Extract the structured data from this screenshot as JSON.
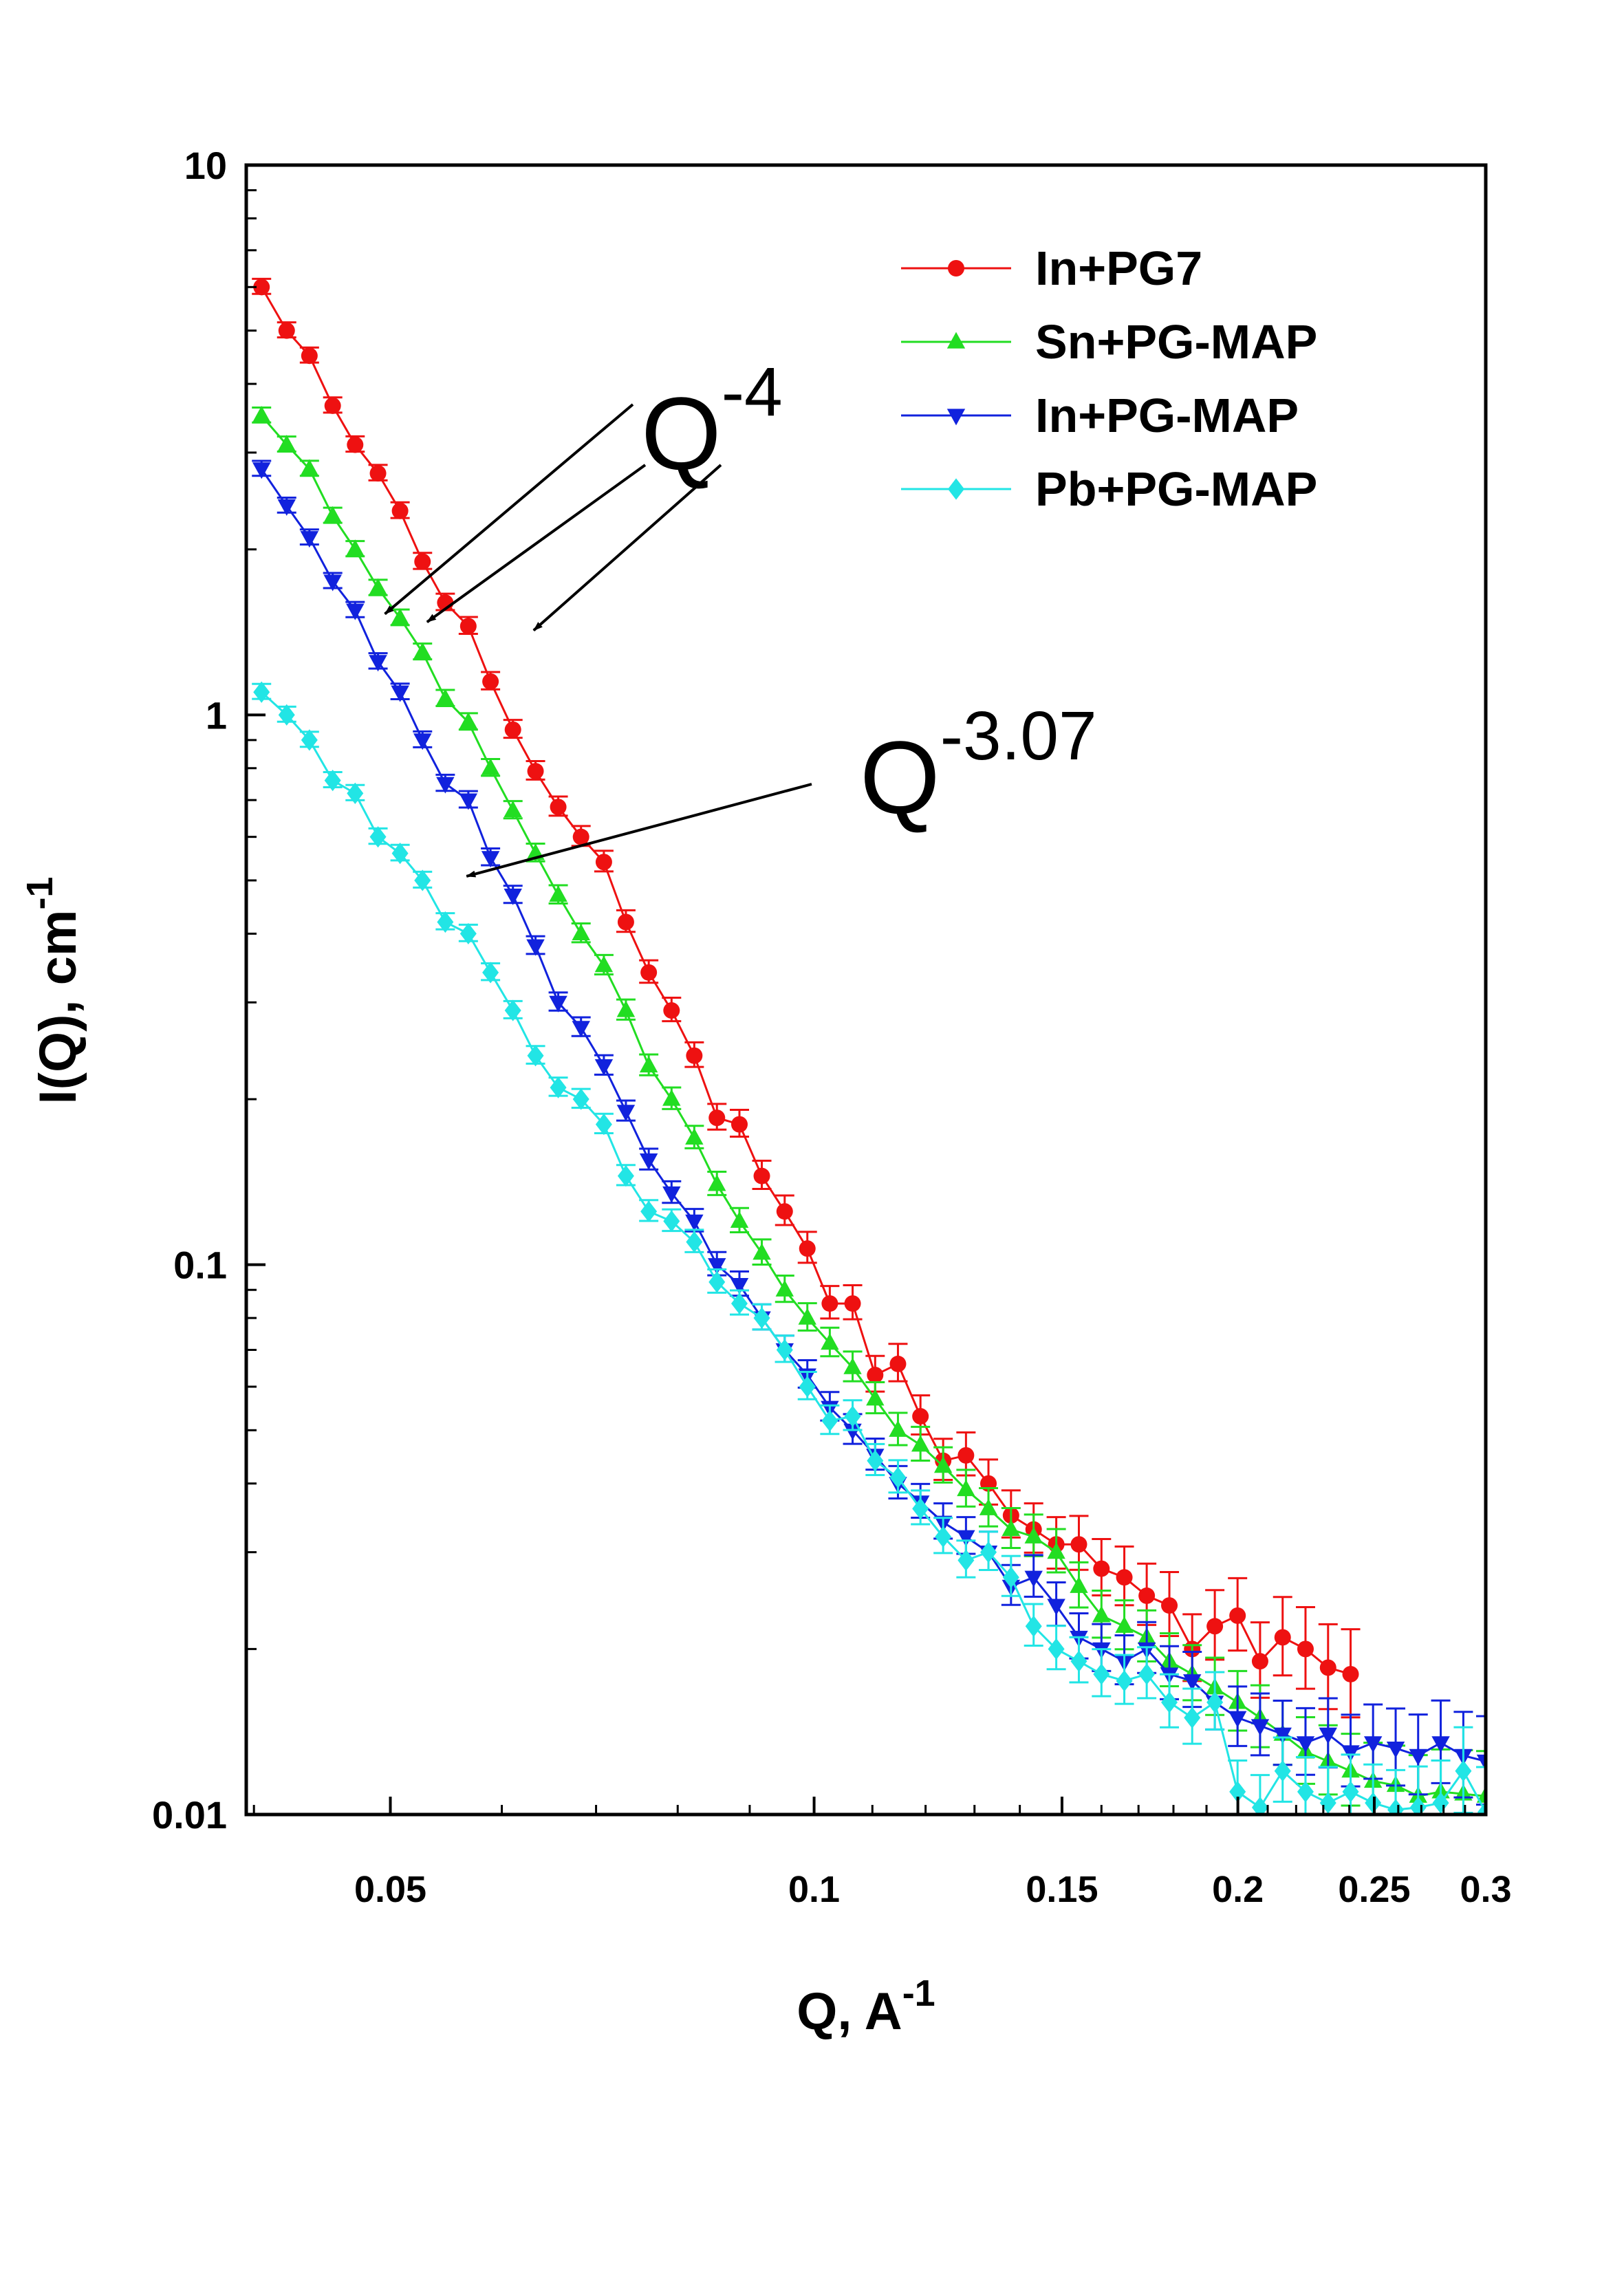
{
  "chart_data": {
    "type": "scatter",
    "title": "",
    "xlabel": "Q, A",
    "xlabel_sup": "-1",
    "ylabel": "I(Q), cm",
    "ylabel_sup": "-1",
    "xscale": "log",
    "yscale": "log",
    "xlim": [
      0.0395,
      0.3
    ],
    "ylim": [
      0.01,
      10
    ],
    "x_ticks": [
      0.05,
      0.1,
      0.15,
      0.2,
      0.25,
      0.3
    ],
    "x_tick_labels": [
      "0.05",
      "0.1",
      "0.15",
      "0.2",
      "0.25",
      "0.3"
    ],
    "y_ticks": [
      0.01,
      0.1,
      1,
      10
    ],
    "y_tick_labels": [
      "0.01",
      "0.1",
      "1",
      "10"
    ],
    "grid": false,
    "legend_position": "top-right",
    "series": [
      {
        "name": "In+PG7",
        "color": "#ee1111",
        "marker": "circle",
        "points": [
          [
            0.0405,
            6.0
          ],
          [
            0.0422,
            5.0
          ],
          [
            0.0438,
            4.5
          ],
          [
            0.0455,
            3.65
          ],
          [
            0.0472,
            3.1
          ],
          [
            0.049,
            2.75
          ],
          [
            0.0508,
            2.35
          ],
          [
            0.0527,
            1.9
          ],
          [
            0.0547,
            1.6
          ],
          [
            0.0568,
            1.45
          ],
          [
            0.0589,
            1.15
          ],
          [
            0.0611,
            0.94
          ],
          [
            0.0634,
            0.79
          ],
          [
            0.0658,
            0.68
          ],
          [
            0.0683,
            0.6
          ],
          [
            0.0709,
            0.54
          ],
          [
            0.0735,
            0.42
          ],
          [
            0.0763,
            0.34
          ],
          [
            0.0792,
            0.29
          ],
          [
            0.0822,
            0.24
          ],
          [
            0.0853,
            0.185
          ],
          [
            0.0885,
            0.18
          ],
          [
            0.0918,
            0.145
          ],
          [
            0.0953,
            0.125
          ],
          [
            0.0989,
            0.107
          ],
          [
            0.1026,
            0.085
          ],
          [
            0.1065,
            0.085
          ],
          [
            0.1105,
            0.063
          ],
          [
            0.1147,
            0.066
          ],
          [
            0.119,
            0.053
          ],
          [
            0.1235,
            0.044
          ],
          [
            0.1282,
            0.045
          ],
          [
            0.133,
            0.04
          ],
          [
            0.138,
            0.035
          ],
          [
            0.1432,
            0.033
          ],
          [
            0.1486,
            0.031
          ],
          [
            0.1542,
            0.031
          ],
          [
            0.16,
            0.028
          ],
          [
            0.1661,
            0.027
          ],
          [
            0.1723,
            0.025
          ],
          [
            0.1788,
            0.024
          ],
          [
            0.1856,
            0.02
          ],
          [
            0.1926,
            0.022
          ],
          [
            0.1999,
            0.023
          ],
          [
            0.2074,
            0.019
          ],
          [
            0.2152,
            0.021
          ],
          [
            0.2234,
            0.02
          ],
          [
            0.2318,
            0.0185
          ],
          [
            0.2405,
            0.018
          ]
        ]
      },
      {
        "name": "Sn+PG-MAP",
        "color": "#22dd22",
        "marker": "triangle-up",
        "points": [
          [
            0.0405,
            3.5
          ],
          [
            0.0422,
            3.1
          ],
          [
            0.0438,
            2.8
          ],
          [
            0.0455,
            2.3
          ],
          [
            0.0472,
            2.0
          ],
          [
            0.049,
            1.7
          ],
          [
            0.0508,
            1.5
          ],
          [
            0.0527,
            1.3
          ],
          [
            0.0547,
            1.07
          ],
          [
            0.0568,
            0.97
          ],
          [
            0.0589,
            0.8
          ],
          [
            0.0611,
            0.67
          ],
          [
            0.0634,
            0.56
          ],
          [
            0.0658,
            0.47
          ],
          [
            0.0683,
            0.4
          ],
          [
            0.0709,
            0.35
          ],
          [
            0.0735,
            0.29
          ],
          [
            0.0763,
            0.23
          ],
          [
            0.0792,
            0.2
          ],
          [
            0.0822,
            0.17
          ],
          [
            0.0853,
            0.14
          ],
          [
            0.0885,
            0.12
          ],
          [
            0.0918,
            0.105
          ],
          [
            0.0953,
            0.09
          ],
          [
            0.0989,
            0.08
          ],
          [
            0.1026,
            0.072
          ],
          [
            0.1065,
            0.065
          ],
          [
            0.1105,
            0.057
          ],
          [
            0.1147,
            0.05
          ],
          [
            0.119,
            0.047
          ],
          [
            0.1235,
            0.043
          ],
          [
            0.1282,
            0.039
          ],
          [
            0.133,
            0.036
          ],
          [
            0.138,
            0.033
          ],
          [
            0.1432,
            0.032
          ],
          [
            0.1486,
            0.03
          ],
          [
            0.1542,
            0.026
          ],
          [
            0.16,
            0.023
          ],
          [
            0.1661,
            0.022
          ],
          [
            0.1723,
            0.021
          ],
          [
            0.1788,
            0.019
          ],
          [
            0.1856,
            0.018
          ],
          [
            0.1926,
            0.017
          ],
          [
            0.1999,
            0.016
          ],
          [
            0.2074,
            0.015
          ],
          [
            0.2152,
            0.014
          ],
          [
            0.2234,
            0.013
          ],
          [
            0.2318,
            0.0125
          ],
          [
            0.2405,
            0.012
          ],
          [
            0.2495,
            0.0115
          ],
          [
            0.2589,
            0.0113
          ],
          [
            0.2686,
            0.0108
          ],
          [
            0.2787,
            0.011
          ],
          [
            0.2892,
            0.0109
          ],
          [
            0.3,
            0.0108
          ]
        ]
      },
      {
        "name": "In+PG-MAP",
        "color": "#1122dd",
        "marker": "triangle-down",
        "points": [
          [
            0.0405,
            2.8
          ],
          [
            0.0422,
            2.4
          ],
          [
            0.0438,
            2.1
          ],
          [
            0.0455,
            1.75
          ],
          [
            0.0472,
            1.55
          ],
          [
            0.049,
            1.25
          ],
          [
            0.0508,
            1.1
          ],
          [
            0.0527,
            0.9
          ],
          [
            0.0547,
            0.75
          ],
          [
            0.0568,
            0.7
          ],
          [
            0.0589,
            0.55
          ],
          [
            0.0611,
            0.47
          ],
          [
            0.0634,
            0.38
          ],
          [
            0.0658,
            0.3
          ],
          [
            0.0683,
            0.27
          ],
          [
            0.0709,
            0.23
          ],
          [
            0.0735,
            0.19
          ],
          [
            0.0763,
            0.155
          ],
          [
            0.0792,
            0.135
          ],
          [
            0.0822,
            0.12
          ],
          [
            0.0853,
            0.1
          ],
          [
            0.0885,
            0.092
          ],
          [
            0.0918,
            0.08
          ],
          [
            0.0953,
            0.07
          ],
          [
            0.0989,
            0.063
          ],
          [
            0.1026,
            0.055
          ],
          [
            0.1065,
            0.05
          ],
          [
            0.1105,
            0.045
          ],
          [
            0.1147,
            0.04
          ],
          [
            0.119,
            0.037
          ],
          [
            0.1235,
            0.034
          ],
          [
            0.1282,
            0.032
          ],
          [
            0.133,
            0.03
          ],
          [
            0.138,
            0.026
          ],
          [
            0.1432,
            0.027
          ],
          [
            0.1486,
            0.024
          ],
          [
            0.1542,
            0.021
          ],
          [
            0.16,
            0.02
          ],
          [
            0.1661,
            0.019
          ],
          [
            0.1723,
            0.02
          ],
          [
            0.1788,
            0.018
          ],
          [
            0.1856,
            0.0175
          ],
          [
            0.1926,
            0.016
          ],
          [
            0.1999,
            0.015
          ],
          [
            0.2074,
            0.0145
          ],
          [
            0.2152,
            0.014
          ],
          [
            0.2234,
            0.0135
          ],
          [
            0.2318,
            0.014
          ],
          [
            0.2405,
            0.013
          ],
          [
            0.2495,
            0.0135
          ],
          [
            0.2589,
            0.0132
          ],
          [
            0.2686,
            0.0128
          ],
          [
            0.2787,
            0.0135
          ],
          [
            0.2892,
            0.0128
          ],
          [
            0.3,
            0.0125
          ]
        ]
      },
      {
        "name": "Pb+PG-MAP",
        "color": "#22e5e5",
        "marker": "diamond",
        "points": [
          [
            0.0405,
            1.1
          ],
          [
            0.0422,
            1.0
          ],
          [
            0.0438,
            0.9
          ],
          [
            0.0455,
            0.76
          ],
          [
            0.0472,
            0.72
          ],
          [
            0.049,
            0.6
          ],
          [
            0.0508,
            0.56
          ],
          [
            0.0527,
            0.5
          ],
          [
            0.0547,
            0.42
          ],
          [
            0.0568,
            0.4
          ],
          [
            0.0589,
            0.34
          ],
          [
            0.0611,
            0.29
          ],
          [
            0.0634,
            0.24
          ],
          [
            0.0658,
            0.21
          ],
          [
            0.0683,
            0.2
          ],
          [
            0.0709,
            0.18
          ],
          [
            0.0735,
            0.145
          ],
          [
            0.0763,
            0.125
          ],
          [
            0.0792,
            0.12
          ],
          [
            0.0822,
            0.11
          ],
          [
            0.0853,
            0.093
          ],
          [
            0.0885,
            0.085
          ],
          [
            0.0918,
            0.08
          ],
          [
            0.0953,
            0.07
          ],
          [
            0.0989,
            0.06
          ],
          [
            0.1026,
            0.052
          ],
          [
            0.1065,
            0.053
          ],
          [
            0.1105,
            0.044
          ],
          [
            0.1147,
            0.041
          ],
          [
            0.119,
            0.036
          ],
          [
            0.1235,
            0.032
          ],
          [
            0.1282,
            0.029
          ],
          [
            0.133,
            0.03
          ],
          [
            0.138,
            0.027
          ],
          [
            0.1432,
            0.022
          ],
          [
            0.1486,
            0.02
          ],
          [
            0.1542,
            0.019
          ],
          [
            0.16,
            0.018
          ],
          [
            0.1661,
            0.0175
          ],
          [
            0.1723,
            0.018
          ],
          [
            0.1788,
            0.016
          ],
          [
            0.1856,
            0.015
          ],
          [
            0.1926,
            0.016
          ],
          [
            0.1999,
            0.011
          ],
          [
            0.2074,
            0.0103
          ],
          [
            0.2152,
            0.012
          ],
          [
            0.2234,
            0.011
          ],
          [
            0.2318,
            0.0105
          ],
          [
            0.2405,
            0.011
          ],
          [
            0.2495,
            0.0105
          ],
          [
            0.2589,
            0.0102
          ],
          [
            0.2686,
            0.0103
          ],
          [
            0.2787,
            0.0105
          ],
          [
            0.2892,
            0.012
          ],
          [
            0.3,
            0.0101
          ]
        ]
      }
    ],
    "annotations": [
      {
        "id": "q-4",
        "text": "Q",
        "sup": "-4",
        "arrow_targets": [
          {
            "series": "In+PG-MAP",
            "x": 0.049,
            "y": 1.5
          },
          {
            "series": "Sn+PG-MAP",
            "x": 0.0525,
            "y": 1.45
          },
          {
            "series": "In+PG7",
            "x": 0.0625,
            "y": 1.4
          }
        ]
      },
      {
        "id": "q-3.07",
        "text": "Q",
        "sup": "-3.07",
        "arrow_targets": [
          {
            "series": "Pb+PG-MAP",
            "x": 0.056,
            "y": 0.5
          }
        ]
      }
    ]
  }
}
